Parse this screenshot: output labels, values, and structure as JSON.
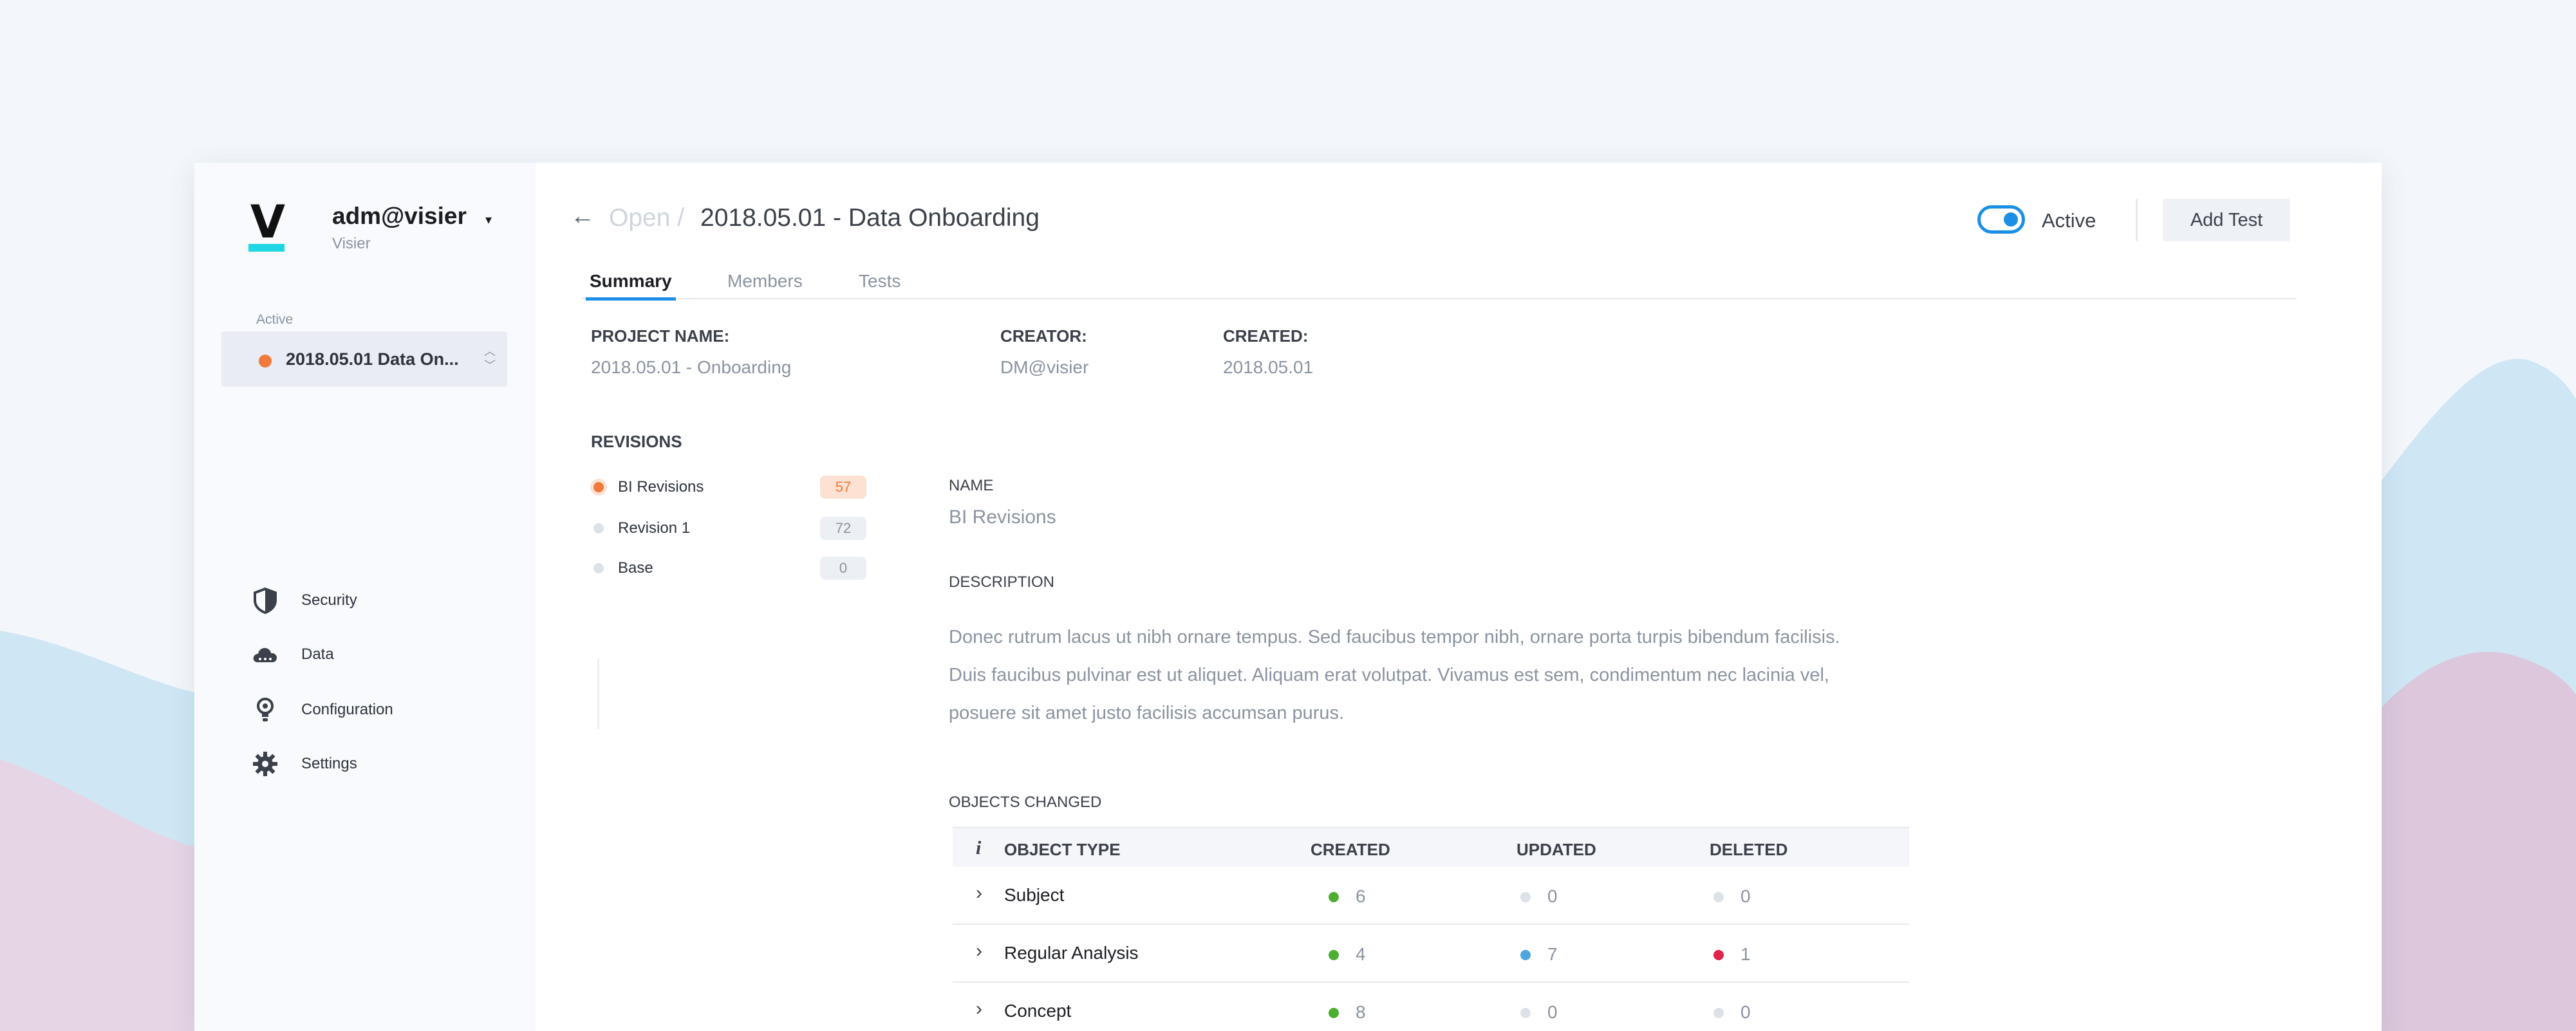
{
  "colors": {
    "accent": "#1b8fe6",
    "active_dot": "#f07a3c",
    "created": "#4caf32",
    "updated_blue": "#4ea6e0",
    "deleted_red": "#e0244a",
    "neutral": "#dde1e8",
    "brand_bar": "#1ed7e2"
  },
  "sidebar": {
    "brand_letter": "V",
    "user_name": "adm@visier",
    "user_caret": "▾",
    "org": "Visier",
    "active_label": "Active",
    "project_select": "2018.05.01 Data On...",
    "nav": [
      {
        "label": "Security",
        "icon": "shield-icon"
      },
      {
        "label": "Data",
        "icon": "cloud-icon"
      },
      {
        "label": "Configuration",
        "icon": "bulb-icon"
      },
      {
        "label": "Settings",
        "icon": "gear-icon"
      }
    ]
  },
  "header": {
    "back": "←",
    "crumb_open": "Open /",
    "title": "2018.05.01 - Data Onboarding",
    "toggle_label": "Active",
    "toggle_on": true,
    "add_test": "Add Test"
  },
  "tabs": [
    "Summary",
    "Members",
    "Tests"
  ],
  "meta": {
    "project_name_label": "PROJECT NAME:",
    "project_name": "2018.05.01 - Onboarding",
    "creator_label": "CREATOR:",
    "creator": "DM@visier",
    "created_label": "CREATED:",
    "created": "2018.05.01"
  },
  "revisions": {
    "title": "REVISIONS",
    "items": [
      {
        "label": "BI Revisions",
        "count": "57",
        "active": true
      },
      {
        "label": "Revision 1",
        "count": "72",
        "active": false
      },
      {
        "label": "Base",
        "count": "0",
        "active": false
      }
    ]
  },
  "detail": {
    "name_label": "NAME",
    "name": "BI Revisions",
    "description_label": "DESCRIPTION",
    "description": "Donec rutrum lacus ut nibh ornare tempus. Sed faucibus tempor nibh, ornare porta turpis bibendum facilisis. Duis faucibus pulvinar est ut aliquet. Aliquam erat volutpat. Vivamus est sem, condimentum nec lacinia vel, posuere sit amet justo facilisis accumsan purus.",
    "objects_label": "OBJECTS CHANGED"
  },
  "table": {
    "info": "i",
    "headers": [
      "OBJECT TYPE",
      "CREATED",
      "UPDATED",
      "DELETED"
    ],
    "rows": [
      {
        "type": "Subject",
        "created": "6",
        "updated": "0",
        "deleted": "0",
        "created_color": "#4caf32",
        "updated_color": "#dde1e8",
        "deleted_color": "#dde1e8"
      },
      {
        "type": "Regular Analysis",
        "created": "4",
        "updated": "7",
        "deleted": "1",
        "created_color": "#4caf32",
        "updated_color": "#4ea6e0",
        "deleted_color": "#e0244a"
      },
      {
        "type": "Concept",
        "created": "8",
        "updated": "0",
        "deleted": "0",
        "created_color": "#4caf32",
        "updated_color": "#dde1e8",
        "deleted_color": "#dde1e8"
      }
    ]
  }
}
